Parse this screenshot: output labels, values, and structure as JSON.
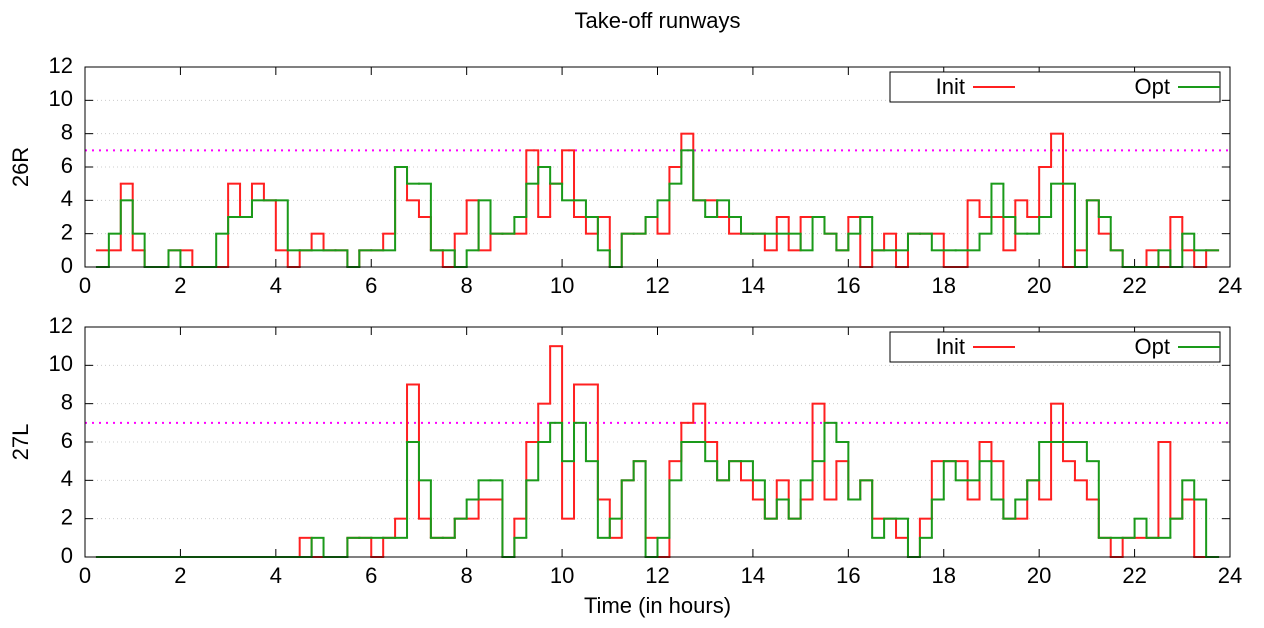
{
  "chart_data": [
    {
      "type": "line",
      "step": "post",
      "title": "Take-off runways",
      "ylabel": "26R",
      "x": [
        0.25,
        0.5,
        0.75,
        1,
        1.25,
        1.5,
        1.75,
        2,
        2.25,
        2.5,
        2.75,
        3,
        3.25,
        3.5,
        3.75,
        4,
        4.25,
        4.5,
        4.75,
        5,
        5.25,
        5.5,
        5.75,
        6,
        6.25,
        6.5,
        6.75,
        7,
        7.25,
        7.5,
        7.75,
        8,
        8.25,
        8.5,
        8.75,
        9,
        9.25,
        9.5,
        9.75,
        10,
        10.25,
        10.5,
        10.75,
        11,
        11.25,
        11.5,
        11.75,
        12,
        12.25,
        12.5,
        12.75,
        13,
        13.25,
        13.5,
        13.75,
        14,
        14.25,
        14.5,
        14.75,
        15,
        15.25,
        15.5,
        15.75,
        16,
        16.25,
        16.5,
        16.75,
        17,
        17.25,
        17.5,
        17.75,
        18,
        18.25,
        18.5,
        18.75,
        19,
        19.25,
        19.5,
        19.75,
        20,
        20.25,
        20.5,
        20.75,
        21,
        21.25,
        21.5,
        21.75,
        22,
        22.25,
        22.5,
        22.75,
        23,
        23.25,
        23.5
      ],
      "series": [
        {
          "name": "Init",
          "color": "#ff2020",
          "values": [
            1,
            1,
            5,
            1,
            0,
            0,
            1,
            1,
            0,
            0,
            0,
            5,
            3,
            5,
            4,
            1,
            0,
            1,
            2,
            1,
            1,
            0,
            1,
            1,
            2,
            6,
            4,
            3,
            1,
            0,
            2,
            4,
            1,
            2,
            2,
            2,
            7,
            3,
            5,
            7,
            3,
            2,
            3,
            0,
            2,
            2,
            3,
            2,
            6,
            8,
            4,
            4,
            3,
            2,
            2,
            2,
            1,
            3,
            1,
            3,
            3,
            2,
            1,
            3,
            0,
            1,
            2,
            0,
            2,
            2,
            2,
            0,
            0,
            4,
            3,
            3,
            1,
            4,
            3,
            6,
            8,
            0,
            1,
            4,
            2,
            1,
            0,
            0,
            1,
            0,
            3,
            1,
            0,
            1
          ]
        },
        {
          "name": "Opt",
          "color": "#1a9a1a",
          "values": [
            0,
            2,
            4,
            2,
            0,
            0,
            1,
            0,
            0,
            0,
            2,
            3,
            3,
            4,
            4,
            4,
            1,
            1,
            1,
            1,
            1,
            0,
            1,
            1,
            1,
            6,
            5,
            5,
            1,
            1,
            0,
            1,
            4,
            2,
            2,
            3,
            5,
            6,
            5,
            4,
            4,
            3,
            1,
            0,
            2,
            2,
            3,
            4,
            5,
            7,
            4,
            3,
            4,
            3,
            2,
            2,
            2,
            2,
            2,
            1,
            3,
            2,
            1,
            2,
            3,
            1,
            1,
            1,
            2,
            2,
            1,
            1,
            1,
            1,
            2,
            5,
            3,
            2,
            2,
            3,
            5,
            5,
            0,
            4,
            3,
            1,
            0,
            0,
            0,
            1,
            0,
            2,
            1,
            1
          ]
        }
      ],
      "xlim": [
        0,
        24
      ],
      "ylim": [
        0,
        12
      ],
      "xticks": [
        0,
        2,
        4,
        6,
        8,
        10,
        12,
        14,
        16,
        18,
        20,
        22,
        24
      ],
      "yticks": [
        0,
        2,
        4,
        6,
        8,
        10,
        12
      ],
      "threshold": 7,
      "threshold_color": "#ff00ff",
      "grid": true,
      "legend": "upper right"
    },
    {
      "type": "line",
      "step": "post",
      "ylabel": "27L",
      "xlabel": "Time (in hours)",
      "x": [
        0.25,
        0.5,
        0.75,
        1,
        1.25,
        1.5,
        1.75,
        2,
        2.25,
        2.5,
        2.75,
        3,
        3.25,
        3.5,
        3.75,
        4,
        4.25,
        4.5,
        4.75,
        5,
        5.25,
        5.5,
        5.75,
        6,
        6.25,
        6.5,
        6.75,
        7,
        7.25,
        7.5,
        7.75,
        8,
        8.25,
        8.5,
        8.75,
        9,
        9.25,
        9.5,
        9.75,
        10,
        10.25,
        10.5,
        10.75,
        11,
        11.25,
        11.5,
        11.75,
        12,
        12.25,
        12.5,
        12.75,
        13,
        13.25,
        13.5,
        13.75,
        14,
        14.25,
        14.5,
        14.75,
        15,
        15.25,
        15.5,
        15.75,
        16,
        16.25,
        16.5,
        16.75,
        17,
        17.25,
        17.5,
        17.75,
        18,
        18.25,
        18.5,
        18.75,
        19,
        19.25,
        19.5,
        19.75,
        20,
        20.25,
        20.5,
        20.75,
        21,
        21.25,
        21.5,
        21.75,
        22,
        22.25,
        22.5,
        22.75,
        23,
        23.25,
        23.5
      ],
      "series": [
        {
          "name": "Init",
          "color": "#ff2020",
          "values": [
            0,
            0,
            0,
            0,
            0,
            0,
            0,
            0,
            0,
            0,
            0,
            0,
            0,
            0,
            0,
            0,
            0,
            1,
            0,
            0,
            0,
            1,
            1,
            0,
            1,
            2,
            9,
            2,
            1,
            1,
            2,
            2,
            3,
            3,
            0,
            2,
            6,
            8,
            11,
            2,
            9,
            9,
            3,
            1,
            4,
            5,
            1,
            0,
            5,
            7,
            8,
            6,
            4,
            5,
            4,
            3,
            2,
            4,
            2,
            3,
            8,
            3,
            5,
            3,
            4,
            2,
            2,
            1,
            0,
            2,
            5,
            5,
            5,
            3,
            6,
            5,
            2,
            2,
            4,
            3,
            8,
            5,
            4,
            3,
            1,
            0,
            1,
            1,
            1,
            6,
            2,
            3,
            0,
            0
          ]
        },
        {
          "name": "Opt",
          "color": "#1a9a1a",
          "values": [
            0,
            0,
            0,
            0,
            0,
            0,
            0,
            0,
            0,
            0,
            0,
            0,
            0,
            0,
            0,
            0,
            0,
            0,
            1,
            0,
            0,
            1,
            1,
            1,
            1,
            1,
            6,
            4,
            1,
            1,
            2,
            3,
            4,
            4,
            0,
            1,
            4,
            6,
            7,
            5,
            7,
            5,
            1,
            2,
            4,
            5,
            0,
            1,
            4,
            6,
            6,
            5,
            4,
            5,
            5,
            4,
            2,
            3,
            2,
            4,
            5,
            7,
            6,
            3,
            4,
            1,
            2,
            2,
            0,
            1,
            3,
            5,
            4,
            4,
            5,
            3,
            2,
            3,
            4,
            6,
            6,
            6,
            6,
            5,
            1,
            1,
            1,
            2,
            1,
            1,
            2,
            4,
            3,
            0
          ]
        }
      ],
      "xlim": [
        0,
        24
      ],
      "ylim": [
        0,
        12
      ],
      "xticks": [
        0,
        2,
        4,
        6,
        8,
        10,
        12,
        14,
        16,
        18,
        20,
        22,
        24
      ],
      "yticks": [
        0,
        2,
        4,
        6,
        8,
        10,
        12
      ],
      "threshold": 7,
      "threshold_color": "#ff00ff",
      "grid": true,
      "legend": "upper right"
    }
  ]
}
